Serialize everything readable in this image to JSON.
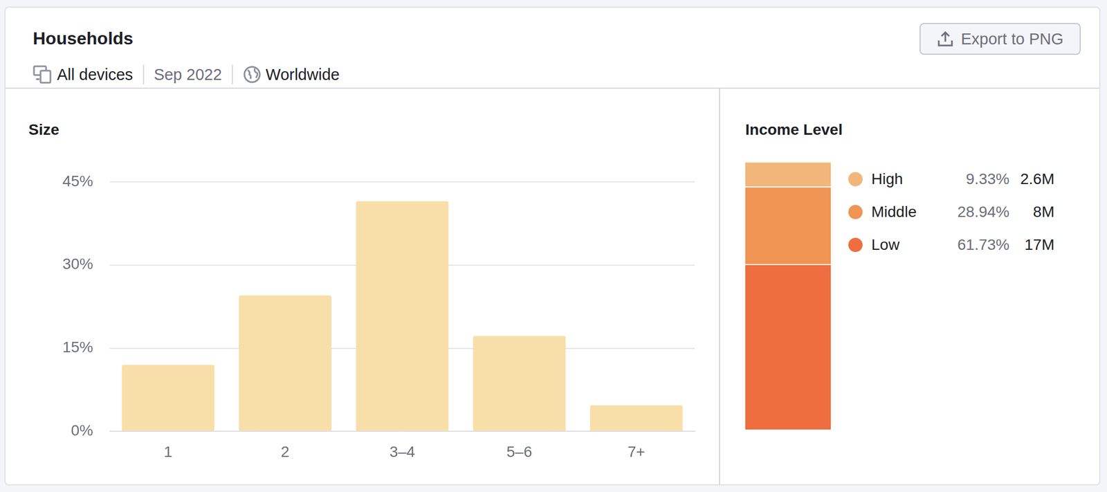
{
  "header": {
    "title": "Households",
    "device": "All devices",
    "date": "Sep 2022",
    "region": "Worldwide",
    "button": "Export to PNG"
  },
  "chart_data": [
    {
      "type": "bar",
      "title": "Size",
      "categories": [
        "1",
        "2",
        "3–4",
        "5–6",
        "7+"
      ],
      "values": [
        12.0,
        24.5,
        41.5,
        17.2,
        4.7
      ],
      "color": "#f8dea8",
      "ylim": [
        0,
        45
      ],
      "yticks": [
        {
          "value": 0,
          "label": "0%"
        },
        {
          "value": 15,
          "label": "15%"
        },
        {
          "value": 30,
          "label": "30%"
        },
        {
          "value": 45,
          "label": "45%"
        }
      ],
      "grid": true
    },
    {
      "type": "bar",
      "title": "Income Level",
      "stacked": true,
      "tick_labels": false,
      "legend": "right",
      "categories": [
        null
      ],
      "ylim": [
        0,
        100
      ],
      "series": [
        {
          "name": "High",
          "color": "#f2b67a",
          "values": [
            9.33
          ],
          "value_labels": [
            "9.33%"
          ],
          "count": 2600000,
          "count_label": "2.6M"
        },
        {
          "name": "Middle",
          "color": "#f09553",
          "values": [
            28.94
          ],
          "value_labels": [
            "28.94%"
          ],
          "count": 8000000,
          "count_label": "8M"
        },
        {
          "name": "Low",
          "color": "#ee6e40",
          "values": [
            61.73
          ],
          "value_labels": [
            "61.73%"
          ],
          "count": 17000000,
          "count_label": "17M"
        }
      ]
    }
  ]
}
